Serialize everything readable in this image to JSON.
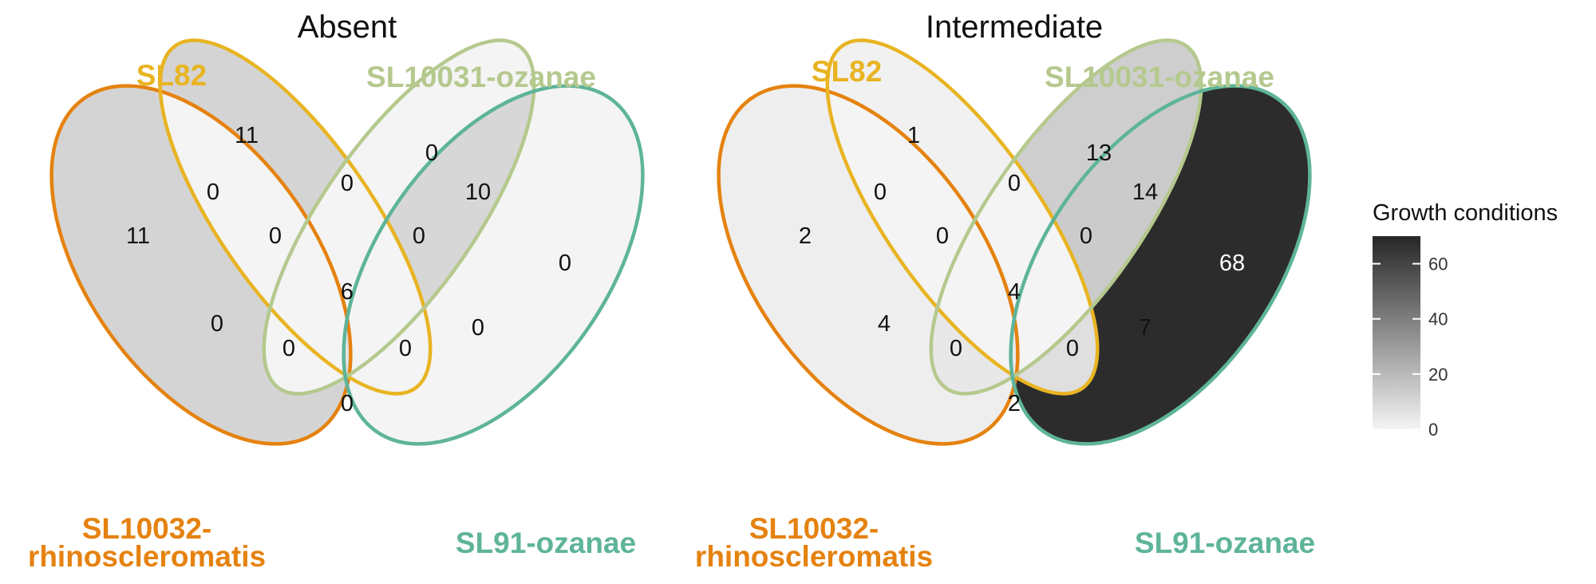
{
  "legend": {
    "title": "Growth conditions",
    "ticks": [
      "0",
      "20",
      "40",
      "60"
    ],
    "tick_values": [
      0,
      20,
      40,
      60
    ],
    "max": 70,
    "color_low": "#f4f4f4",
    "color_high": "#262626"
  },
  "sets": {
    "sl82": "SL82",
    "sl10031": "SL10031-ozanae",
    "sl10032_line1": "SL10032-",
    "sl10032_line2": "rhinoscleromatis",
    "sl91": "SL91-ozanae"
  },
  "set_colors": {
    "sl82": "#E8B422",
    "sl10031": "#B5C98E",
    "sl10032": "#E5820F",
    "sl91": "#5EB49A"
  },
  "panels": [
    {
      "title": "Absent",
      "regions": {
        "sl10032_only": 11,
        "sl82_only": 11,
        "sl10031_only": 0,
        "sl91_only": 0,
        "sl10032_sl82": 0,
        "sl82_sl10031": 0,
        "sl10031_sl91": 10,
        "sl10032_sl82_sl10031": 0,
        "sl82_sl10031_sl91": 0,
        "sl10032_sl10031": 0,
        "all_four": 6,
        "sl82_sl91": 0,
        "sl10032_sl10031_sl91": 0,
        "sl10032_sl82_sl91": 0,
        "sl10032_sl91": 0
      }
    },
    {
      "title": "Intermediate",
      "regions": {
        "sl10032_only": 2,
        "sl82_only": 1,
        "sl10031_only": 13,
        "sl91_only": 68,
        "sl10032_sl82": 0,
        "sl82_sl10031": 0,
        "sl10031_sl91": 14,
        "sl10032_sl82_sl10031": 0,
        "sl82_sl10031_sl91": 0,
        "sl10032_sl10031": 4,
        "all_four": 4,
        "sl82_sl91": 7,
        "sl10032_sl10031_sl91": 0,
        "sl10032_sl82_sl91": 0,
        "sl10032_sl91": 2
      }
    }
  ]
}
